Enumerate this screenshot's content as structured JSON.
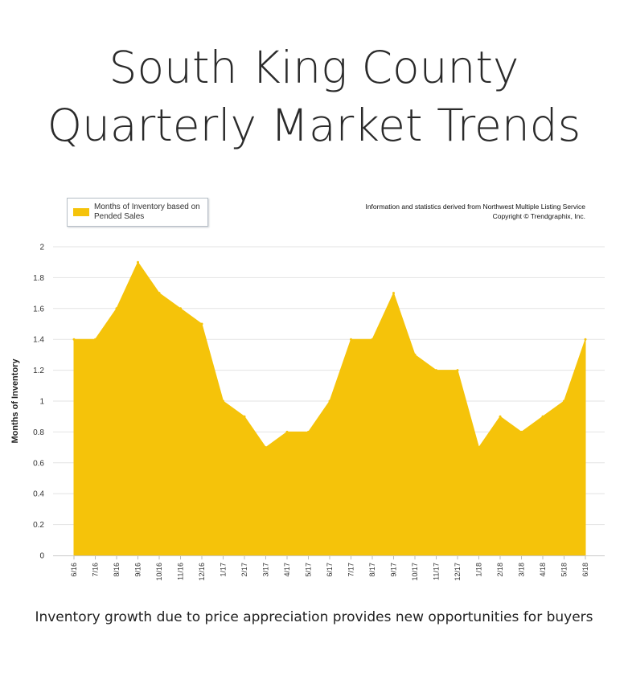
{
  "title": {
    "line1": "South King County",
    "line2": "Quarterly Market Trends"
  },
  "legend": {
    "label": "Months of Inventory based on Pended Sales",
    "color": "#F5C30A"
  },
  "source": {
    "line1": "Information and statistics derived from Northwest Multiple Listing Service",
    "line2": "Copyright © Trendgraphix, Inc."
  },
  "caption": "Inventory growth due to price appreciation provides new opportunities for buyers",
  "chart_data": {
    "type": "area",
    "ylabel": "Months of Inventory",
    "xlabel": "",
    "ylim": [
      0,
      2
    ],
    "yticks": [
      "0",
      "0.2",
      "0.4",
      "0.6",
      "0.8",
      "1",
      "1.2",
      "1.4",
      "1.6",
      "1.8",
      "2"
    ],
    "grid": true,
    "legend_position": "top-left",
    "categories": [
      "6/16",
      "7/16",
      "8/16",
      "9/16",
      "10/16",
      "11/16",
      "12/16",
      "1/17",
      "2/17",
      "3/17",
      "4/17",
      "5/17",
      "6/17",
      "7/17",
      "8/17",
      "9/17",
      "10/17",
      "11/17",
      "12/17",
      "1/18",
      "2/18",
      "3/18",
      "4/18",
      "5/18",
      "6/18"
    ],
    "series": [
      {
        "name": "Months of Inventory based on Pended Sales",
        "color": "#F5C30A",
        "values": [
          1.4,
          1.4,
          1.6,
          1.9,
          1.7,
          1.6,
          1.5,
          1.0,
          0.9,
          0.7,
          0.8,
          0.8,
          1.0,
          1.4,
          1.4,
          1.7,
          1.3,
          1.2,
          1.2,
          0.7,
          0.9,
          0.8,
          0.9,
          1.0,
          1.4
        ]
      }
    ]
  }
}
